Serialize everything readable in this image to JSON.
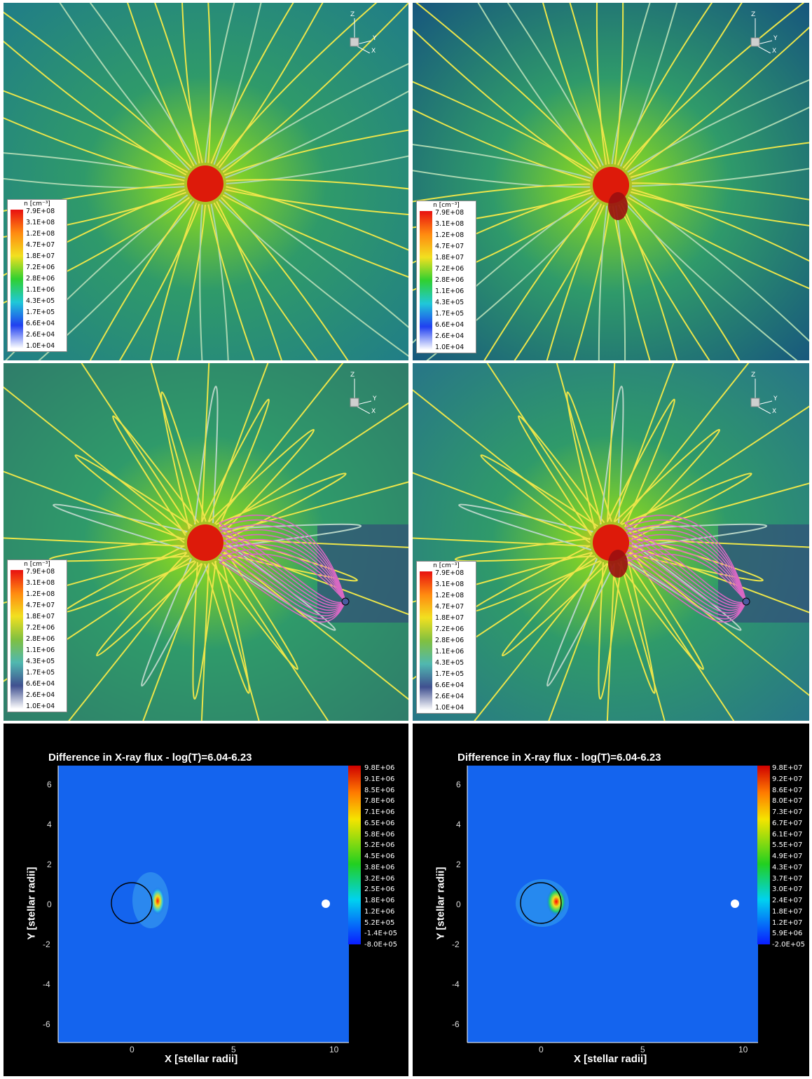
{
  "density_legend": {
    "title": "n [cm⁻³]",
    "ticks": [
      "7.9E+08",
      "3.1E+08",
      "1.2E+08",
      "4.7E+07",
      "1.8E+07",
      "7.2E+06",
      "2.8E+06",
      "1.1E+06",
      "4.3E+05",
      "1.7E+05",
      "6.6E+04",
      "2.6E+04",
      "1.0E+04"
    ]
  },
  "axes3d": {
    "z": "Z",
    "y": "Y",
    "x": "X"
  },
  "xray_left": {
    "title": "Difference in X-ray flux - log(T)=6.04-6.23",
    "xlabel": "X [stellar radii]",
    "ylabel": "Y [stellar radii]",
    "xticks": [
      "0",
      "5",
      "10"
    ],
    "yticks": [
      "6",
      "4",
      "2",
      "0",
      "-2",
      "-4",
      "-6"
    ],
    "colorbar": [
      "9.8E+06",
      "9.1E+06",
      "8.5E+06",
      "7.8E+06",
      "7.1E+06",
      "6.5E+06",
      "5.8E+06",
      "5.2E+06",
      "4.5E+06",
      "3.8E+06",
      "3.2E+06",
      "2.5E+06",
      "1.8E+06",
      "1.2E+06",
      "5.2E+05",
      "-1.4E+05",
      "-8.0E+05"
    ]
  },
  "xray_right": {
    "title": "Difference in X-ray flux - log(T)=6.04-6.23",
    "xlabel": "X [stellar radii]",
    "ylabel": "Y [stellar radii]",
    "xticks": [
      "0",
      "5",
      "10"
    ],
    "yticks": [
      "6",
      "4",
      "2",
      "0",
      "-2",
      "-4",
      "-6"
    ],
    "colorbar": [
      "9.8E+07",
      "9.2E+07",
      "8.6E+07",
      "8.0E+07",
      "7.3E+07",
      "6.7E+07",
      "6.1E+07",
      "5.5E+07",
      "4.9E+07",
      "4.3E+07",
      "3.7E+07",
      "3.0E+07",
      "2.4E+07",
      "1.8E+07",
      "1.2E+07",
      "5.9E+06",
      "-2.0E+05"
    ]
  },
  "colors": {
    "star": "#dd1a0a",
    "fieldline": "#ece54a",
    "planet_field": "#d868c4",
    "xray_bg": "#1464ee"
  }
}
